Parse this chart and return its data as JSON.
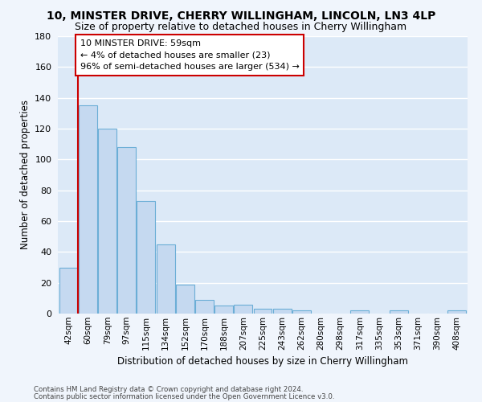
{
  "title_line1": "10, MINSTER DRIVE, CHERRY WILLINGHAM, LINCOLN, LN3 4LP",
  "title_line2": "Size of property relative to detached houses in Cherry Willingham",
  "xlabel": "Distribution of detached houses by size in Cherry Willingham",
  "ylabel": "Number of detached properties",
  "categories": [
    "42sqm",
    "60sqm",
    "79sqm",
    "97sqm",
    "115sqm",
    "134sqm",
    "152sqm",
    "170sqm",
    "188sqm",
    "207sqm",
    "225sqm",
    "243sqm",
    "262sqm",
    "280sqm",
    "298sqm",
    "317sqm",
    "335sqm",
    "353sqm",
    "371sqm",
    "390sqm",
    "408sqm"
  ],
  "values": [
    30,
    135,
    120,
    108,
    73,
    45,
    19,
    9,
    5,
    6,
    3,
    3,
    2,
    0,
    0,
    2,
    0,
    2,
    0,
    0,
    2
  ],
  "bar_color": "#c5d9f0",
  "bar_edge_color": "#6baed6",
  "ylim": [
    0,
    180
  ],
  "yticks": [
    0,
    20,
    40,
    60,
    80,
    100,
    120,
    140,
    160,
    180
  ],
  "annotation_title": "10 MINSTER DRIVE: 59sqm",
  "annotation_line1": "← 4% of detached houses are smaller (23)",
  "annotation_line2": "96% of semi-detached houses are larger (534) →",
  "annotation_box_facecolor": "#ffffff",
  "annotation_box_edgecolor": "#cc0000",
  "vline_color": "#cc0000",
  "fig_facecolor": "#f0f5fc",
  "ax_facecolor": "#dce9f7",
  "grid_color": "#ffffff",
  "footnote1": "Contains HM Land Registry data © Crown copyright and database right 2024.",
  "footnote2": "Contains public sector information licensed under the Open Government Licence v3.0."
}
